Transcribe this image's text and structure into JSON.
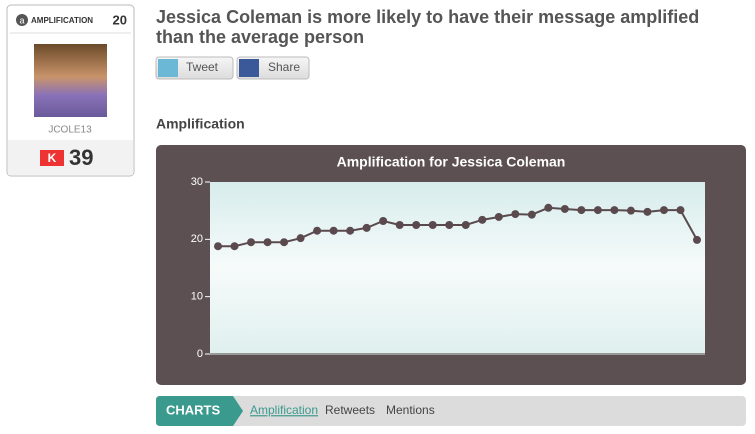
{
  "sidebar": {
    "badge_label": "AMPLIFICATION",
    "badge_score": 20,
    "username": "JCOLE13",
    "klout_score": 39
  },
  "header": {
    "title_line1": "Jessica Coleman is more likely to have their message amplified",
    "title_line2": "than the average person",
    "buttons": [
      "Tweet",
      "Share"
    ]
  },
  "section_title": "Amplification",
  "chart_data": {
    "type": "line",
    "title": "Amplification for Jessica Coleman",
    "values": [
      18.8,
      18.8,
      19.5,
      19.5,
      19.5,
      20.2,
      21.5,
      21.5,
      21.5,
      22,
      23.2,
      22.5,
      22.5,
      22.5,
      22.5,
      22.5,
      23.4,
      23.9,
      24.4,
      24.3,
      25.5,
      25.3,
      25.1,
      25.1,
      25.1,
      25,
      24.8,
      25.1,
      25.1,
      19.9
    ],
    "color": "#5a4a4e",
    "ylim": [
      0,
      30
    ],
    "yticks": [
      0,
      10,
      20,
      30
    ]
  },
  "tabs": {
    "label": "CHARTS",
    "links": [
      "Amplification",
      "Retweets",
      "Mentions"
    ]
  }
}
